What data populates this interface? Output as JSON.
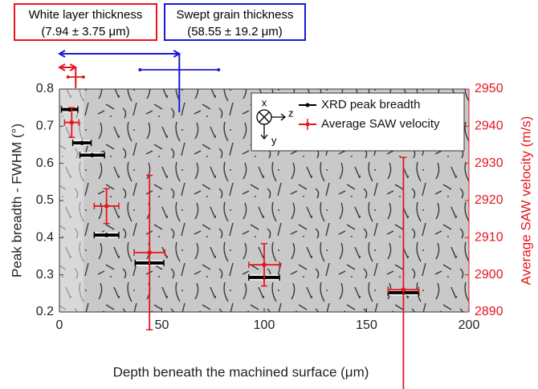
{
  "chart_data": {
    "type": "errorbar",
    "xlabel": "Depth beneath the machined surface (μm)",
    "ylabel": "Peak breadth - FWHM (°)",
    "y2label": "Average SAW velocity (m/s)",
    "xlim": [
      0,
      200
    ],
    "xticks": [
      0,
      50,
      100,
      150,
      200
    ],
    "ylim": [
      0.2,
      0.8
    ],
    "yticks": [
      0.2,
      0.3,
      0.4,
      0.5,
      0.6,
      0.7,
      0.8
    ],
    "y2lim": [
      2890,
      2950
    ],
    "y2ticks": [
      2890,
      2900,
      2910,
      2920,
      2930,
      2940,
      2950
    ],
    "y2color": "#e8141c",
    "legend": "top-right",
    "axes_icon_labels": [
      "x",
      "z",
      "y"
    ],
    "series": [
      {
        "name": "XRD peak breadth",
        "color": "#000000",
        "axis": "y",
        "x": [
          5,
          11,
          16,
          23,
          44,
          100,
          168
        ],
        "values": [
          0.745,
          0.655,
          0.622,
          0.407,
          0.332,
          0.293,
          0.252
        ],
        "xerr": [
          4,
          4.5,
          6,
          6,
          7,
          7.5,
          7.5
        ]
      },
      {
        "name": "Average SAW velocity",
        "color": "#e8141c",
        "axis": "y2",
        "x": [
          6,
          23,
          44,
          100,
          168
        ],
        "values": [
          2941,
          2918.5,
          2906,
          2902.7,
          2896
        ],
        "xerr": [
          3.5,
          6,
          7.5,
          7.5,
          7.5
        ],
        "yerr": [
          4,
          4.7,
          20.8,
          5.7,
          35.6
        ]
      }
    ],
    "annotations": [
      {
        "label": "White layer thickness",
        "text": "(7.94 ± 3.75 μm)",
        "value": 7.94,
        "error": 3.75,
        "color": "#e8141c"
      },
      {
        "label": "Swept grain thickness",
        "text": "(58.55 ± 19.2 μm)",
        "value": 58.55,
        "error": 19.2,
        "color": "#1a1ad6"
      }
    ]
  }
}
